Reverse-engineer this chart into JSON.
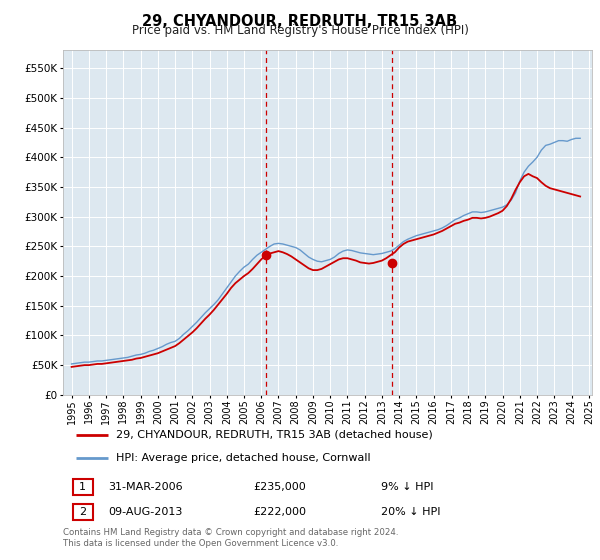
{
  "title": "29, CHYANDOUR, REDRUTH, TR15 3AB",
  "subtitle": "Price paid vs. HM Land Registry's House Price Index (HPI)",
  "legend_line1": "29, CHYANDOUR, REDRUTH, TR15 3AB (detached house)",
  "legend_line2": "HPI: Average price, detached house, Cornwall",
  "footer": "Contains HM Land Registry data © Crown copyright and database right 2024.\nThis data is licensed under the Open Government Licence v3.0.",
  "annotation1": {
    "label": "1",
    "date": "31-MAR-2006",
    "price": "£235,000",
    "note": "9% ↓ HPI"
  },
  "annotation2": {
    "label": "2",
    "date": "09-AUG-2013",
    "price": "£222,000",
    "note": "20% ↓ HPI"
  },
  "red_color": "#cc0000",
  "blue_color": "#6699cc",
  "bg_color": "#dde8f0",
  "grid_color": "#ffffff",
  "ylim": [
    0,
    580000
  ],
  "yticks": [
    0,
    50000,
    100000,
    150000,
    200000,
    250000,
    300000,
    350000,
    400000,
    450000,
    500000,
    550000
  ],
  "hpi_x": [
    1995.0,
    1995.25,
    1995.5,
    1995.75,
    1996.0,
    1996.25,
    1996.5,
    1996.75,
    1997.0,
    1997.25,
    1997.5,
    1997.75,
    1998.0,
    1998.25,
    1998.5,
    1998.75,
    1999.0,
    1999.25,
    1999.5,
    1999.75,
    2000.0,
    2000.25,
    2000.5,
    2000.75,
    2001.0,
    2001.25,
    2001.5,
    2001.75,
    2002.0,
    2002.25,
    2002.5,
    2002.75,
    2003.0,
    2003.25,
    2003.5,
    2003.75,
    2004.0,
    2004.25,
    2004.5,
    2004.75,
    2005.0,
    2005.25,
    2005.5,
    2005.75,
    2006.0,
    2006.25,
    2006.5,
    2006.75,
    2007.0,
    2007.25,
    2007.5,
    2007.75,
    2008.0,
    2008.25,
    2008.5,
    2008.75,
    2009.0,
    2009.25,
    2009.5,
    2009.75,
    2010.0,
    2010.25,
    2010.5,
    2010.75,
    2011.0,
    2011.25,
    2011.5,
    2011.75,
    2012.0,
    2012.25,
    2012.5,
    2012.75,
    2013.0,
    2013.25,
    2013.5,
    2013.75,
    2014.0,
    2014.25,
    2014.5,
    2014.75,
    2015.0,
    2015.25,
    2015.5,
    2015.75,
    2016.0,
    2016.25,
    2016.5,
    2016.75,
    2017.0,
    2017.25,
    2017.5,
    2017.75,
    2018.0,
    2018.25,
    2018.5,
    2018.75,
    2019.0,
    2019.25,
    2019.5,
    2019.75,
    2020.0,
    2020.25,
    2020.5,
    2020.75,
    2021.0,
    2021.25,
    2021.5,
    2021.75,
    2022.0,
    2022.25,
    2022.5,
    2022.75,
    2023.0,
    2023.25,
    2023.5,
    2023.75,
    2024.0,
    2024.25,
    2024.5
  ],
  "hpi_y": [
    52000,
    53000,
    54000,
    55000,
    55000,
    56000,
    57000,
    57000,
    58000,
    59000,
    60000,
    61000,
    62000,
    63000,
    65000,
    67000,
    68000,
    70000,
    73000,
    75000,
    78000,
    81000,
    85000,
    88000,
    90000,
    95000,
    102000,
    108000,
    115000,
    122000,
    130000,
    138000,
    145000,
    152000,
    160000,
    170000,
    180000,
    190000,
    200000,
    208000,
    215000,
    220000,
    228000,
    235000,
    240000,
    245000,
    250000,
    254000,
    255000,
    254000,
    252000,
    250000,
    248000,
    244000,
    238000,
    232000,
    228000,
    225000,
    224000,
    226000,
    228000,
    232000,
    238000,
    242000,
    244000,
    243000,
    241000,
    239000,
    238000,
    237000,
    236000,
    237000,
    238000,
    240000,
    242000,
    246000,
    252000,
    258000,
    262000,
    265000,
    268000,
    270000,
    272000,
    274000,
    276000,
    278000,
    281000,
    285000,
    290000,
    295000,
    298000,
    302000,
    305000,
    308000,
    308000,
    307000,
    308000,
    310000,
    312000,
    314000,
    316000,
    320000,
    328000,
    340000,
    360000,
    375000,
    385000,
    392000,
    400000,
    412000,
    420000,
    422000,
    425000,
    428000,
    428000,
    427000,
    430000,
    432000,
    432000
  ],
  "red_x": [
    1995.0,
    1995.25,
    1995.5,
    1995.75,
    1996.0,
    1996.25,
    1996.5,
    1996.75,
    1997.0,
    1997.25,
    1997.5,
    1997.75,
    1998.0,
    1998.25,
    1998.5,
    1998.75,
    1999.0,
    1999.25,
    1999.5,
    1999.75,
    2000.0,
    2000.25,
    2000.5,
    2000.75,
    2001.0,
    2001.25,
    2001.5,
    2001.75,
    2002.0,
    2002.25,
    2002.5,
    2002.75,
    2003.0,
    2003.25,
    2003.5,
    2003.75,
    2004.0,
    2004.25,
    2004.5,
    2004.75,
    2005.0,
    2005.25,
    2005.5,
    2005.75,
    2006.0,
    2006.25,
    2006.5,
    2006.75,
    2007.0,
    2007.25,
    2007.5,
    2007.75,
    2008.0,
    2008.25,
    2008.5,
    2008.75,
    2009.0,
    2009.25,
    2009.5,
    2009.75,
    2010.0,
    2010.25,
    2010.5,
    2010.75,
    2011.0,
    2011.25,
    2011.5,
    2011.75,
    2012.0,
    2012.25,
    2012.5,
    2012.75,
    2013.0,
    2013.25,
    2013.5,
    2013.75,
    2014.0,
    2014.25,
    2014.5,
    2014.75,
    2015.0,
    2015.25,
    2015.5,
    2015.75,
    2016.0,
    2016.25,
    2016.5,
    2016.75,
    2017.0,
    2017.25,
    2017.5,
    2017.75,
    2018.0,
    2018.25,
    2018.5,
    2018.75,
    2019.0,
    2019.25,
    2019.5,
    2019.75,
    2020.0,
    2020.25,
    2020.5,
    2020.75,
    2021.0,
    2021.25,
    2021.5,
    2021.75,
    2022.0,
    2022.25,
    2022.5,
    2022.75,
    2023.0,
    2023.25,
    2023.5,
    2023.75,
    2024.0,
    2024.25,
    2024.5
  ],
  "red_y": [
    47000,
    48000,
    49000,
    50000,
    50000,
    51000,
    52000,
    52000,
    53000,
    54000,
    55000,
    56000,
    57000,
    58000,
    59000,
    61000,
    62000,
    64000,
    66000,
    68000,
    70000,
    73000,
    76000,
    79000,
    82000,
    87000,
    93000,
    99000,
    105000,
    112000,
    120000,
    128000,
    135000,
    143000,
    152000,
    161000,
    170000,
    180000,
    188000,
    194000,
    200000,
    205000,
    212000,
    220000,
    228000,
    235000,
    238000,
    240000,
    242000,
    240000,
    237000,
    233000,
    228000,
    223000,
    218000,
    213000,
    210000,
    210000,
    212000,
    216000,
    220000,
    224000,
    228000,
    230000,
    230000,
    228000,
    226000,
    223000,
    222000,
    221000,
    222000,
    224000,
    226000,
    230000,
    235000,
    240000,
    248000,
    254000,
    258000,
    260000,
    262000,
    264000,
    266000,
    268000,
    270000,
    273000,
    276000,
    280000,
    284000,
    288000,
    290000,
    293000,
    295000,
    298000,
    298000,
    297000,
    298000,
    300000,
    303000,
    306000,
    310000,
    318000,
    330000,
    345000,
    358000,
    368000,
    372000,
    368000,
    365000,
    358000,
    352000,
    348000,
    346000,
    344000,
    342000,
    340000,
    338000,
    336000,
    334000
  ],
  "marker1_x": 2006.25,
  "marker1_y": 235000,
  "marker2_x": 2013.6,
  "marker2_y": 222000,
  "vline1_x": 2006.25,
  "vline2_x": 2013.6,
  "xlim_left": 1994.5,
  "xlim_right": 2025.2
}
